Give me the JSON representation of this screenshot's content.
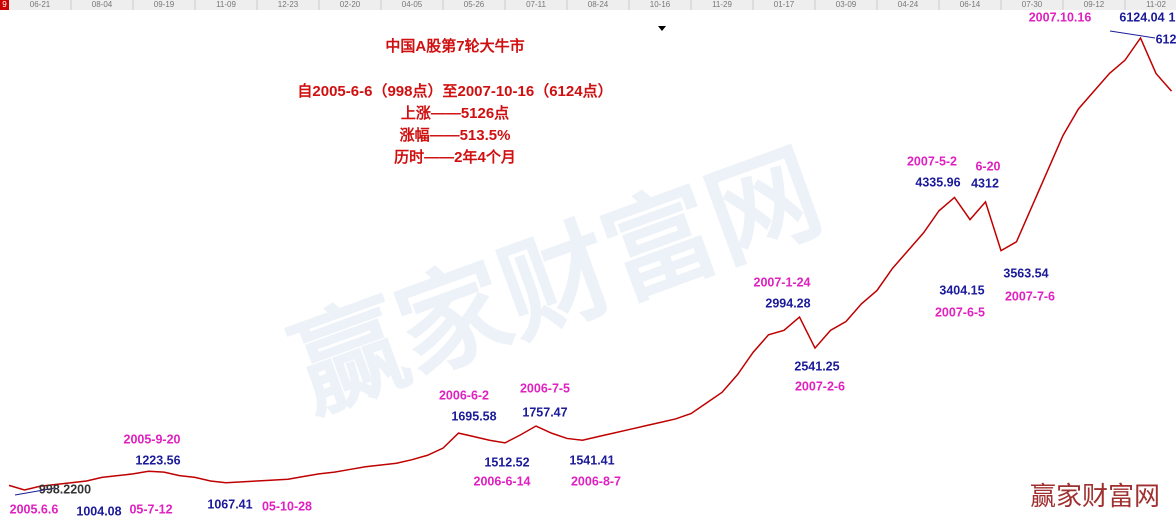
{
  "chart_data": {
    "type": "line",
    "corner_label": "9",
    "title_lines": [
      "中国A股第7轮大牛市",
      "自2005-6-6（998点）至2007-10-16（6124点）",
      "上涨——5126点",
      "涨幅——513.5%",
      "历时——2年4个月"
    ],
    "watermark": "赢家财富网",
    "brand": "赢家财富网",
    "color": "#c00000",
    "categories": [
      null,
      null,
      "06-21",
      null,
      null,
      null,
      "08-04",
      null,
      null,
      null,
      "09-19",
      null,
      null,
      null,
      "11-09",
      null,
      null,
      null,
      "12-23",
      null,
      null,
      null,
      "02-20",
      null,
      null,
      null,
      "04-05",
      null,
      null,
      null,
      "05-26",
      null,
      null,
      null,
      "07-11",
      null,
      null,
      null,
      "08-24",
      null,
      null,
      null,
      "10-16",
      null,
      null,
      null,
      "11-29",
      null,
      null,
      null,
      "01-17",
      null,
      null,
      null,
      "03-09",
      null,
      null,
      null,
      "04-24",
      null,
      null,
      null,
      "06-14",
      null,
      null,
      null,
      "07-30",
      null,
      null,
      null,
      "09-12",
      null,
      null,
      null,
      "11-02",
      null
    ],
    "values": [
      1050,
      998,
      1040,
      1060,
      1080,
      1100,
      1140,
      1160,
      1180,
      1210,
      1200,
      1160,
      1140,
      1100,
      1080,
      1090,
      1100,
      1110,
      1120,
      1150,
      1180,
      1200,
      1230,
      1260,
      1280,
      1300,
      1340,
      1390,
      1470,
      1640,
      1600,
      1560,
      1530,
      1620,
      1720,
      1640,
      1580,
      1560,
      1600,
      1640,
      1680,
      1720,
      1760,
      1800,
      1860,
      1980,
      2100,
      2300,
      2550,
      2750,
      2800,
      2950,
      2600,
      2800,
      2900,
      3100,
      3250,
      3500,
      3700,
      3900,
      4150,
      4300,
      4050,
      4250,
      3700,
      3800,
      4200,
      4600,
      5000,
      5300,
      5500,
      5700,
      5850,
      6100,
      5700,
      5500
    ],
    "annotations": [
      {
        "text": "2007.10.16",
        "kind": "date"
      },
      {
        "text": "6124.04",
        "kind": "price"
      },
      {
        "text": "612",
        "kind": "price"
      },
      {
        "text": "1",
        "kind": "price"
      },
      {
        "text": "2007-5-2",
        "kind": "date"
      },
      {
        "text": "4335.96",
        "kind": "price"
      },
      {
        "text": "6-20",
        "kind": "date"
      },
      {
        "text": "4312",
        "kind": "price"
      },
      {
        "text": "3404.15",
        "kind": "price"
      },
      {
        "text": "2007-6-5",
        "kind": "date"
      },
      {
        "text": "3563.54",
        "kind": "price"
      },
      {
        "text": "2007-7-6",
        "kind": "date"
      },
      {
        "text": "2007-1-24",
        "kind": "date"
      },
      {
        "text": "2994.28",
        "kind": "price"
      },
      {
        "text": "2541.25",
        "kind": "price"
      },
      {
        "text": "2007-2-6",
        "kind": "date"
      },
      {
        "text": "2006-6-2",
        "kind": "date"
      },
      {
        "text": "1695.58",
        "kind": "price"
      },
      {
        "text": "2006-7-5",
        "kind": "date"
      },
      {
        "text": "1757.47",
        "kind": "price"
      },
      {
        "text": "1512.52",
        "kind": "price"
      },
      {
        "text": "2006-6-14",
        "kind": "date"
      },
      {
        "text": "1541.41",
        "kind": "price"
      },
      {
        "text": "2006-8-7",
        "kind": "date"
      },
      {
        "text": "2005-9-20",
        "kind": "date"
      },
      {
        "text": "1223.56",
        "kind": "price"
      },
      {
        "text": "998.2200",
        "kind": "level"
      },
      {
        "text": "2005.6.6",
        "kind": "date"
      },
      {
        "text": "1004.08",
        "kind": "price"
      },
      {
        "text": "05-7-12",
        "kind": "date"
      },
      {
        "text": "1067.41",
        "kind": "price"
      },
      {
        "text": "05-10-28",
        "kind": "date"
      }
    ]
  }
}
